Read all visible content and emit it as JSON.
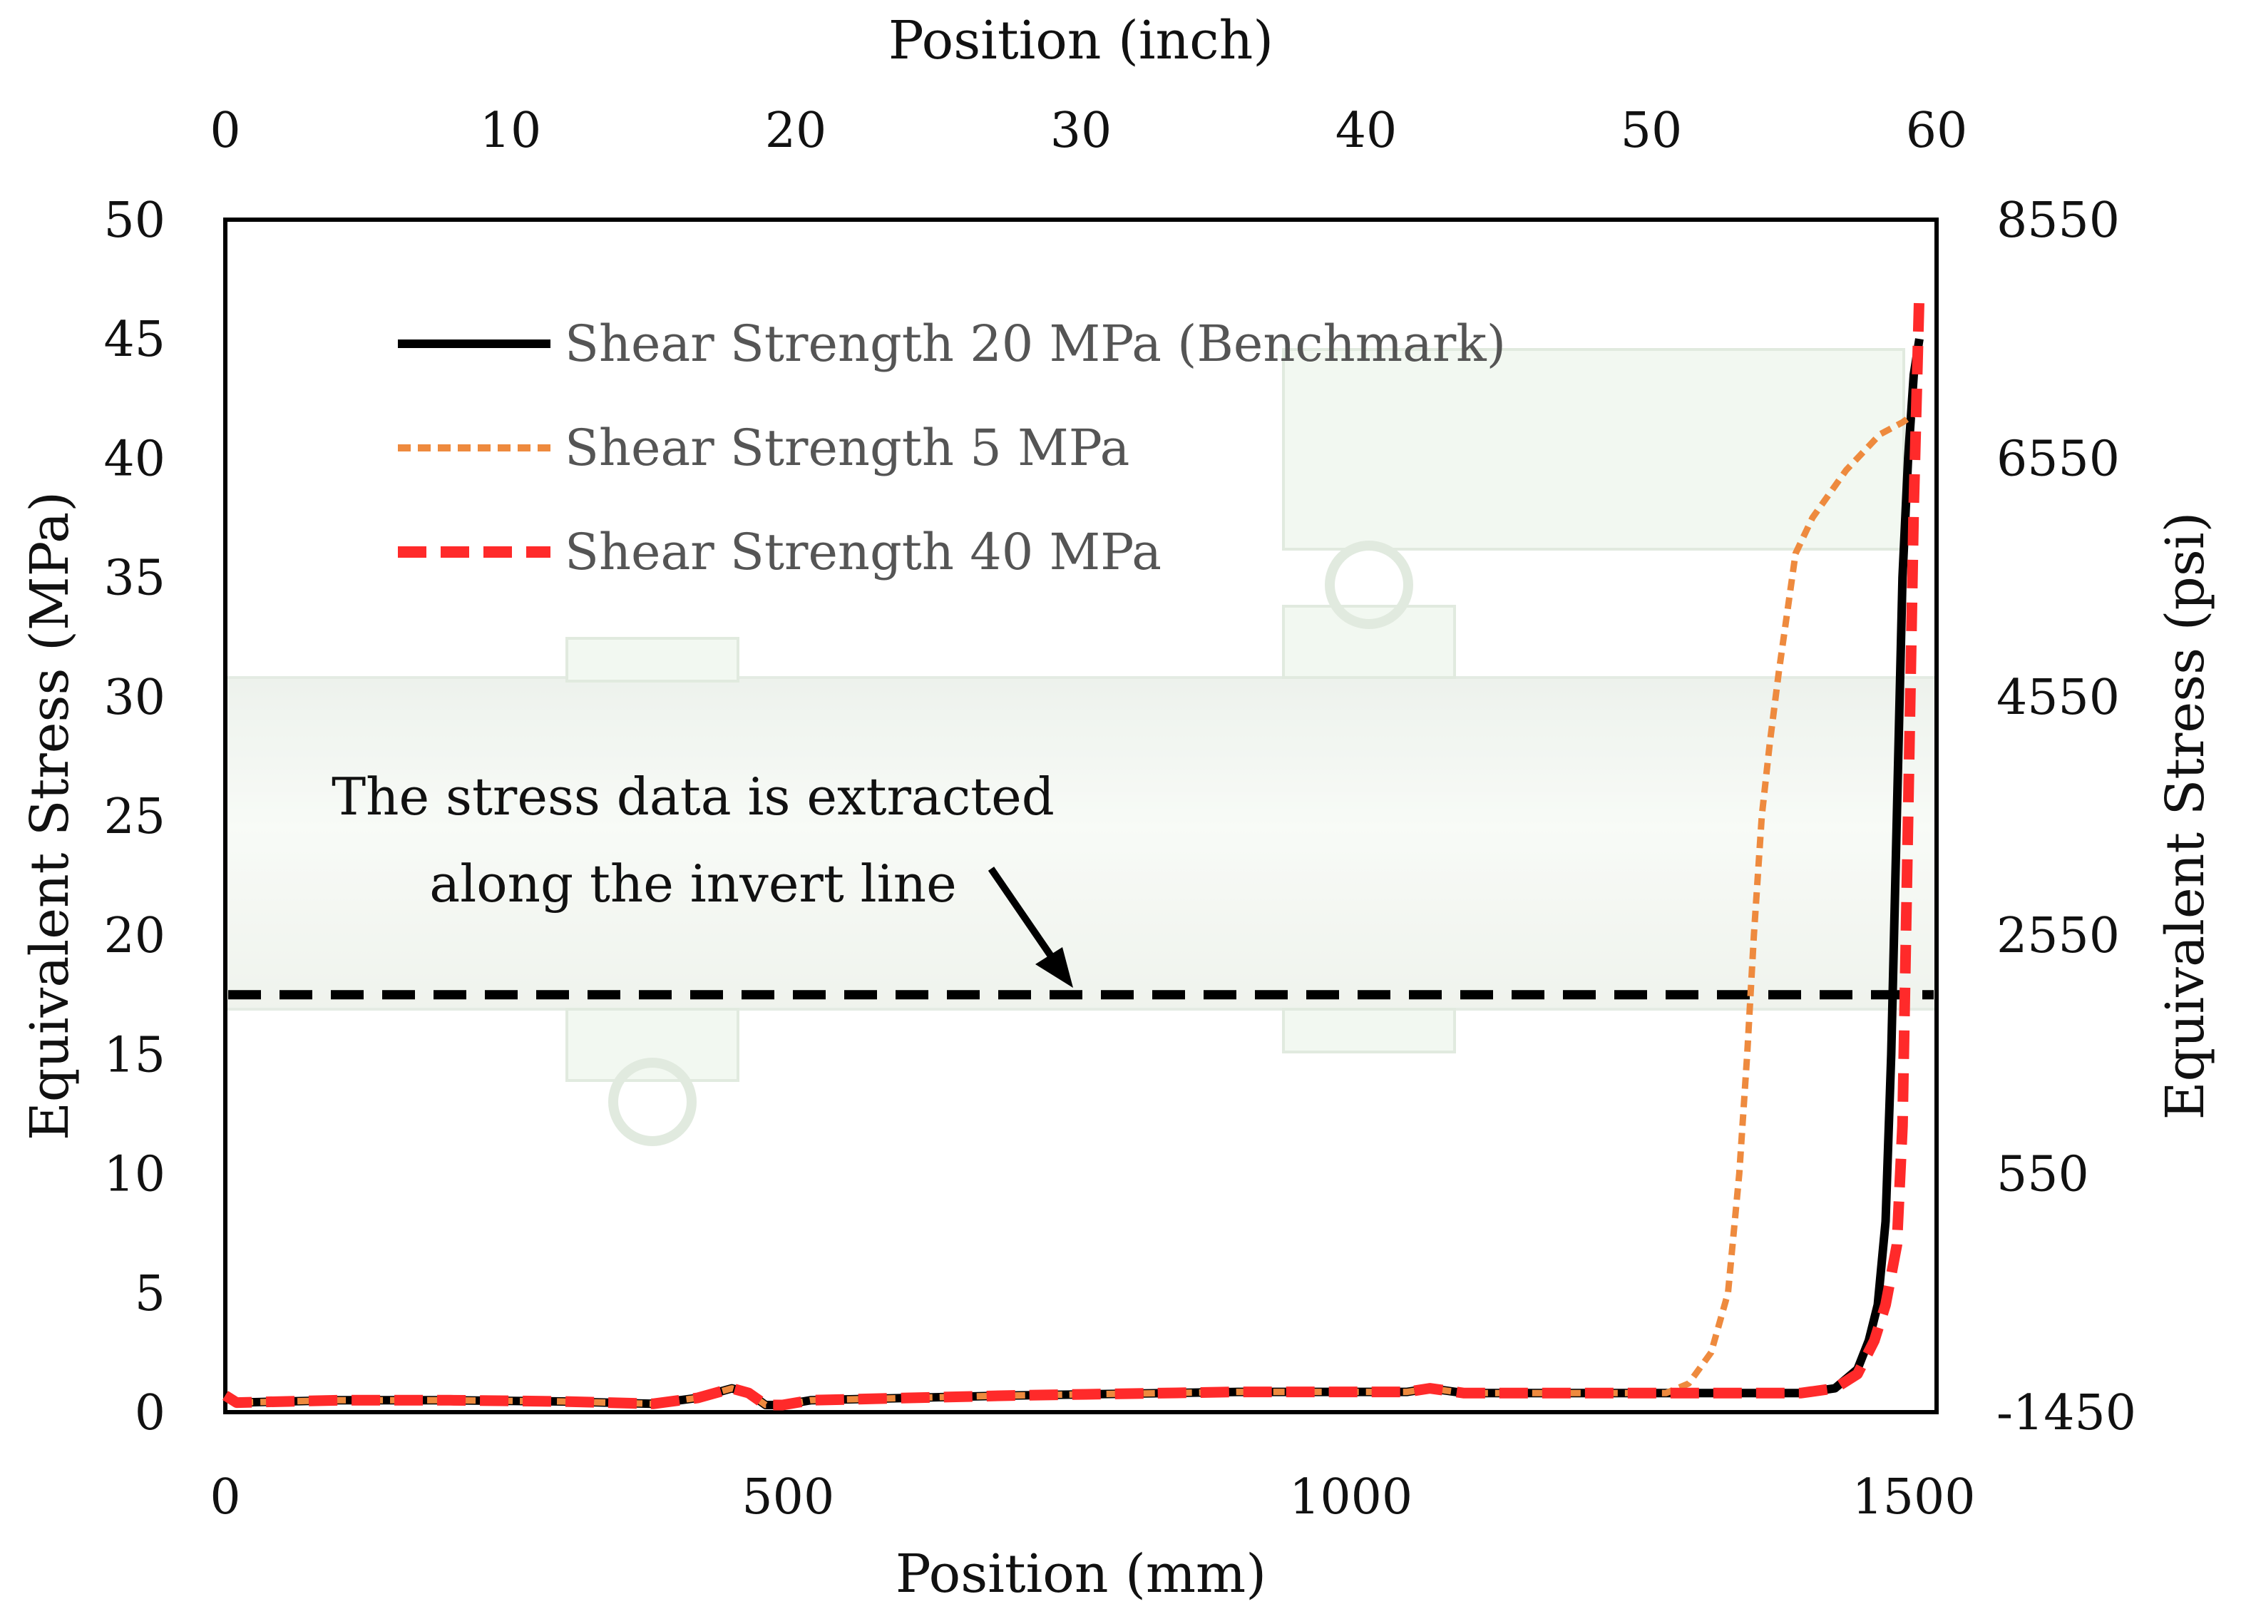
{
  "chart_data": {
    "type": "line",
    "title": "",
    "xlabel": "Position (mm)",
    "ylabel": "Equivalent Stress (MPa)",
    "x2label": "Position (inch)",
    "y2label": "Equivalent Stress (psi)",
    "xlim": [
      0,
      1500
    ],
    "ylim": [
      0,
      50
    ],
    "x_ticks": [
      "0",
      "500",
      "1000",
      "1500"
    ],
    "y_ticks": [
      "0",
      "5",
      "10",
      "15",
      "20",
      "25",
      "30",
      "35",
      "40",
      "45",
      "50"
    ],
    "x2_ticks": [
      "0",
      "10",
      "20",
      "30",
      "40",
      "50",
      "60"
    ],
    "y2_ticks": [
      "-1450",
      "550",
      "2550",
      "4550",
      "6550",
      "8550"
    ],
    "annotation": {
      "line1": "The stress data is extracted",
      "line2": "along the invert line",
      "invert_line_stress": 17.5
    },
    "series": [
      {
        "name": "Shear Strength 20 MPa (Benchmark)",
        "color": "#000000",
        "style": "solid",
        "points": [
          [
            0,
            0.7
          ],
          [
            10,
            0.4
          ],
          [
            100,
            0.5
          ],
          [
            200,
            0.5
          ],
          [
            300,
            0.45
          ],
          [
            380,
            0.35
          ],
          [
            420,
            0.6
          ],
          [
            450,
            1.0
          ],
          [
            465,
            0.8
          ],
          [
            480,
            0.3
          ],
          [
            495,
            0.3
          ],
          [
            520,
            0.5
          ],
          [
            700,
            0.7
          ],
          [
            900,
            0.85
          ],
          [
            1050,
            0.85
          ],
          [
            1070,
            1.0
          ],
          [
            1100,
            0.8
          ],
          [
            1200,
            0.8
          ],
          [
            1300,
            0.8
          ],
          [
            1400,
            0.8
          ],
          [
            1430,
            1.0
          ],
          [
            1450,
            1.8
          ],
          [
            1460,
            3.0
          ],
          [
            1468,
            4.5
          ],
          [
            1475,
            8.0
          ],
          [
            1480,
            15.0
          ],
          [
            1485,
            25.0
          ],
          [
            1490,
            35.0
          ],
          [
            1495,
            40.0
          ],
          [
            1500,
            43.5
          ],
          [
            1505,
            45.0
          ]
        ]
      },
      {
        "name": "Shear Strength 5 MPa",
        "color": "#ee8a3e",
        "style": "dotted",
        "points": [
          [
            0,
            0.7
          ],
          [
            10,
            0.4
          ],
          [
            100,
            0.5
          ],
          [
            200,
            0.5
          ],
          [
            300,
            0.45
          ],
          [
            380,
            0.35
          ],
          [
            420,
            0.6
          ],
          [
            450,
            1.0
          ],
          [
            465,
            0.8
          ],
          [
            480,
            0.3
          ],
          [
            495,
            0.3
          ],
          [
            520,
            0.5
          ],
          [
            700,
            0.7
          ],
          [
            900,
            0.85
          ],
          [
            1050,
            0.85
          ],
          [
            1070,
            1.0
          ],
          [
            1100,
            0.8
          ],
          [
            1200,
            0.8
          ],
          [
            1280,
            0.8
          ],
          [
            1300,
            1.2
          ],
          [
            1320,
            2.5
          ],
          [
            1335,
            5.0
          ],
          [
            1345,
            10.0
          ],
          [
            1352,
            15.0
          ],
          [
            1358,
            20.0
          ],
          [
            1365,
            25.0
          ],
          [
            1372,
            28.0
          ],
          [
            1380,
            31.0
          ],
          [
            1395,
            36.0
          ],
          [
            1410,
            37.5
          ],
          [
            1440,
            39.5
          ],
          [
            1470,
            41.0
          ],
          [
            1490,
            41.5
          ],
          [
            1505,
            42.0
          ]
        ]
      },
      {
        "name": "Shear Strength 40 MPa",
        "color": "#ff2a2a",
        "style": "dashed",
        "points": [
          [
            0,
            0.7
          ],
          [
            10,
            0.4
          ],
          [
            100,
            0.5
          ],
          [
            200,
            0.5
          ],
          [
            300,
            0.45
          ],
          [
            380,
            0.35
          ],
          [
            420,
            0.6
          ],
          [
            450,
            1.0
          ],
          [
            465,
            0.8
          ],
          [
            480,
            0.3
          ],
          [
            495,
            0.3
          ],
          [
            520,
            0.5
          ],
          [
            700,
            0.7
          ],
          [
            900,
            0.85
          ],
          [
            1050,
            0.85
          ],
          [
            1070,
            1.0
          ],
          [
            1100,
            0.8
          ],
          [
            1200,
            0.8
          ],
          [
            1300,
            0.8
          ],
          [
            1400,
            0.8
          ],
          [
            1430,
            1.0
          ],
          [
            1450,
            1.6
          ],
          [
            1465,
            3.0
          ],
          [
            1475,
            4.5
          ],
          [
            1485,
            7.0
          ],
          [
            1490,
            12.0
          ],
          [
            1495,
            25.0
          ],
          [
            1500,
            38.0
          ],
          [
            1505,
            47.0
          ]
        ]
      }
    ]
  }
}
